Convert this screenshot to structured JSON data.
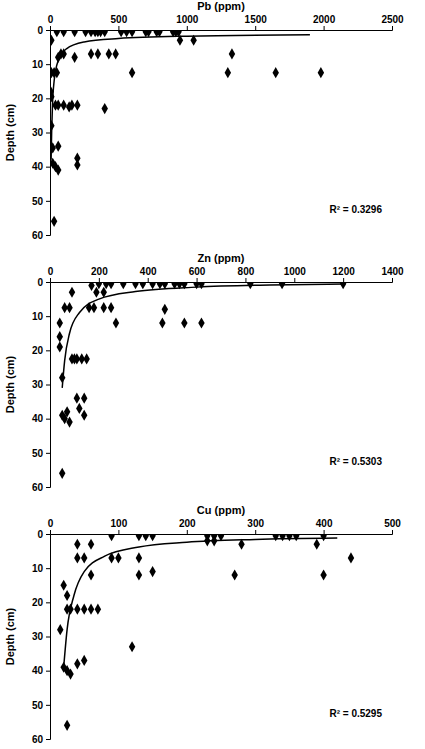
{
  "chart_data": [
    {
      "type": "scatter",
      "x_label": "Pb (ppm)",
      "y_label": "Depth (cm)",
      "xlim": [
        0,
        2500
      ],
      "xticks": [
        0,
        500,
        1000,
        1500,
        2000,
        2500
      ],
      "ylim": [
        60,
        0
      ],
      "yticks": [
        0,
        10,
        20,
        30,
        40,
        50,
        60
      ],
      "series": [
        {
          "type": "scatter",
          "marker": "diamond",
          "color": "#000000",
          "x": [
            50,
            100,
            180,
            260,
            300,
            330,
            350,
            370,
            400,
            520,
            560,
            600,
            700,
            720,
            780,
            800,
            900,
            920,
            940,
            10,
            950,
            1050,
            80,
            100,
            300,
            350,
            430,
            480,
            1330,
            60,
            180,
            10,
            30,
            50,
            600,
            1300,
            1650,
            1980,
            5,
            10,
            40,
            60,
            100,
            140,
            160,
            200,
            400,
            10,
            20,
            60,
            200,
            20,
            40,
            60,
            200,
            30
          ],
          "values": [
            0.5,
            0.5,
            0.5,
            0.5,
            0.5,
            0.5,
            0.5,
            0.5,
            0.5,
            0.5,
            0.5,
            0.5,
            0.5,
            0.5,
            0.5,
            0.5,
            0.5,
            0.5,
            0.5,
            3,
            3,
            3,
            7,
            7,
            7,
            7,
            7,
            7,
            7,
            8,
            8,
            12.5,
            12.5,
            12.5,
            12.5,
            12.5,
            12.5,
            12.5,
            18,
            19.5,
            22,
            22,
            22,
            22.5,
            22,
            22,
            23,
            28,
            34.5,
            34,
            37.5,
            39,
            40,
            41,
            39.5,
            56
          ]
        },
        {
          "type": "line",
          "line_style": "solid",
          "color": "#000000",
          "x": [
            8,
            12,
            18,
            30,
            60,
            120,
            250,
            500,
            1000,
            1900
          ],
          "values": [
            38,
            30,
            22,
            15,
            9,
            5.5,
            3.5,
            2.5,
            1.8,
            1.4
          ]
        }
      ],
      "annotations": [
        {
          "text": "R² = 0.3296"
        }
      ]
    },
    {
      "type": "scatter",
      "x_label": "Zn (ppm)",
      "y_label": "Depth (cm)",
      "xlim": [
        0,
        1400
      ],
      "xticks": [
        0,
        200,
        400,
        600,
        800,
        1000,
        1200,
        1400
      ],
      "ylim": [
        60,
        0
      ],
      "yticks": [
        0,
        10,
        20,
        30,
        40,
        50,
        60
      ],
      "series": [
        {
          "type": "scatter",
          "marker": "diamond",
          "color": "#000000",
          "x": [
            200,
            230,
            250,
            300,
            350,
            380,
            420,
            450,
            470,
            510,
            530,
            550,
            600,
            620,
            820,
            950,
            1200,
            170,
            90,
            190,
            220,
            60,
            80,
            160,
            180,
            220,
            250,
            470,
            40,
            270,
            460,
            550,
            620,
            40,
            40,
            90,
            100,
            110,
            130,
            150,
            50,
            110,
            140,
            70,
            50,
            60,
            80,
            120,
            140,
            50
          ],
          "values": [
            0.5,
            0.5,
            0.5,
            0.5,
            0.5,
            0.5,
            0.5,
            0.5,
            0.5,
            0.5,
            0.5,
            0.5,
            0.5,
            0.5,
            0.5,
            0.5,
            0.5,
            1,
            3,
            3,
            3,
            7.5,
            7.5,
            7.5,
            7.5,
            7.5,
            7.5,
            8,
            12,
            12,
            12,
            12,
            12,
            16,
            19,
            22.5,
            22.5,
            22.5,
            22.5,
            22.5,
            28,
            34,
            34,
            38,
            39,
            40,
            41,
            37,
            39,
            56
          ]
        },
        {
          "type": "line",
          "line_style": "solid",
          "color": "#000000",
          "x": [
            50,
            60,
            80,
            120,
            200,
            350,
            600,
            900,
            1200
          ],
          "values": [
            31,
            23,
            15,
            9,
            5,
            2.8,
            1.5,
            0.9,
            0.6
          ]
        }
      ],
      "annotations": [
        {
          "text": "R² = 0.5303"
        }
      ]
    },
    {
      "type": "scatter",
      "x_label": "Cu (ppm)",
      "y_label": "Depth (cm)",
      "xlim": [
        0,
        500
      ],
      "xticks": [
        0,
        100,
        200,
        300,
        400,
        500
      ],
      "ylim": [
        60,
        0
      ],
      "yticks": [
        0,
        10,
        20,
        30,
        40,
        50,
        60
      ],
      "series": [
        {
          "type": "scatter",
          "marker": "diamond",
          "color": "#000000",
          "x": [
            90,
            130,
            140,
            150,
            230,
            240,
            250,
            330,
            340,
            350,
            360,
            400,
            230,
            240,
            40,
            60,
            280,
            390,
            40,
            50,
            90,
            100,
            130,
            440,
            150,
            60,
            130,
            270,
            400,
            20,
            25,
            25,
            30,
            40,
            50,
            60,
            70,
            15,
            120,
            20,
            25,
            30,
            40,
            50,
            25
          ],
          "values": [
            0.5,
            0.5,
            0.5,
            0.5,
            0.5,
            0.5,
            0.5,
            0.5,
            0.5,
            0.5,
            0.5,
            0.5,
            2,
            2,
            3,
            3,
            3,
            3,
            7,
            7,
            7,
            7,
            7,
            7,
            11,
            12,
            12,
            12,
            12,
            15,
            18,
            22,
            22,
            22,
            22,
            22,
            22,
            28,
            33,
            39,
            40,
            41,
            38,
            37,
            56
          ]
        },
        {
          "type": "line",
          "line_style": "solid",
          "color": "#000000",
          "x": [
            20,
            25,
            35,
            50,
            80,
            130,
            200,
            300,
            420
          ],
          "values": [
            39,
            28,
            18,
            11,
            6.5,
            3.8,
            2.4,
            1.6,
            1.2
          ]
        }
      ],
      "annotations": [
        {
          "text": "R² = 0.5295"
        }
      ]
    }
  ]
}
